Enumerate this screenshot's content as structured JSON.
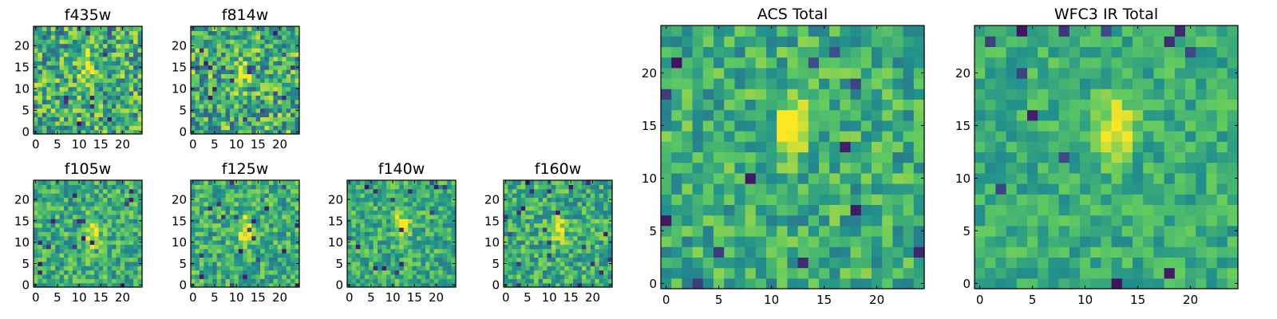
{
  "figure": {
    "colormap": "viridis",
    "colormap_stops": [
      "#440154",
      "#3b528b",
      "#21918c",
      "#5ec962",
      "#fde725"
    ]
  },
  "chart_data": [
    {
      "type": "heatmap",
      "title": "f435w",
      "grid_size": [
        25,
        25
      ],
      "xlim": [
        -0.5,
        24.5
      ],
      "ylim": [
        -0.5,
        24.5
      ],
      "xticks": [
        0,
        5,
        10,
        15,
        20
      ],
      "yticks": [
        0,
        5,
        10,
        15,
        20
      ],
      "origin": "lower",
      "peak": [
        12,
        15
      ],
      "noise": 0.45,
      "seed": 11
    },
    {
      "type": "heatmap",
      "title": "f814w",
      "grid_size": [
        25,
        25
      ],
      "xlim": [
        -0.5,
        24.5
      ],
      "ylim": [
        -0.5,
        24.5
      ],
      "xticks": [
        0,
        5,
        10,
        15,
        20
      ],
      "yticks": [
        0,
        5,
        10,
        15,
        20
      ],
      "origin": "lower",
      "peak": [
        12,
        14
      ],
      "noise": 0.45,
      "seed": 23
    },
    {
      "type": "heatmap",
      "title": "f105w",
      "grid_size": [
        25,
        25
      ],
      "xlim": [
        -0.5,
        24.5
      ],
      "ylim": [
        -0.5,
        24.5
      ],
      "xticks": [
        0,
        5,
        10,
        15,
        20
      ],
      "yticks": [
        0,
        5,
        10,
        15,
        20
      ],
      "origin": "lower",
      "peak": [
        13,
        12
      ],
      "noise": 0.32,
      "seed": 37
    },
    {
      "type": "heatmap",
      "title": "f125w",
      "grid_size": [
        25,
        25
      ],
      "xlim": [
        -0.5,
        24.5
      ],
      "ylim": [
        -0.5,
        24.5
      ],
      "xticks": [
        0,
        5,
        10,
        15,
        20
      ],
      "yticks": [
        0,
        5,
        10,
        15,
        20
      ],
      "origin": "lower",
      "peak": [
        12,
        13
      ],
      "noise": 0.32,
      "seed": 41
    },
    {
      "type": "heatmap",
      "title": "f140w",
      "grid_size": [
        25,
        25
      ],
      "xlim": [
        -0.5,
        24.5
      ],
      "ylim": [
        -0.5,
        24.5
      ],
      "xticks": [
        0,
        5,
        10,
        15,
        20
      ],
      "yticks": [
        0,
        5,
        10,
        15,
        20
      ],
      "origin": "lower",
      "peak": [
        12,
        14
      ],
      "noise": 0.3,
      "seed": 53
    },
    {
      "type": "heatmap",
      "title": "f160w",
      "grid_size": [
        25,
        25
      ],
      "xlim": [
        -0.5,
        24.5
      ],
      "ylim": [
        -0.5,
        24.5
      ],
      "xticks": [
        0,
        5,
        10,
        15,
        20
      ],
      "yticks": [
        0,
        5,
        10,
        15,
        20
      ],
      "origin": "lower",
      "peak": [
        12,
        13
      ],
      "noise": 0.32,
      "seed": 67
    },
    {
      "type": "heatmap",
      "title": "ACS Total",
      "grid_size": [
        25,
        25
      ],
      "xlim": [
        -0.5,
        24.5
      ],
      "ylim": [
        -0.5,
        24.5
      ],
      "xticks": [
        0,
        5,
        10,
        15,
        20
      ],
      "yticks": [
        0,
        5,
        10,
        15,
        20
      ],
      "origin": "lower",
      "peak": [
        12,
        15
      ],
      "noise": 0.3,
      "seed": 79
    },
    {
      "type": "heatmap",
      "title": "WFC3 IR Total",
      "grid_size": [
        25,
        25
      ],
      "xlim": [
        -0.5,
        24.5
      ],
      "ylim": [
        -0.5,
        24.5
      ],
      "xticks": [
        0,
        5,
        10,
        15,
        20
      ],
      "yticks": [
        0,
        5,
        10,
        15,
        20
      ],
      "origin": "lower",
      "peak": [
        13,
        15
      ],
      "noise": 0.22,
      "seed": 97
    }
  ]
}
